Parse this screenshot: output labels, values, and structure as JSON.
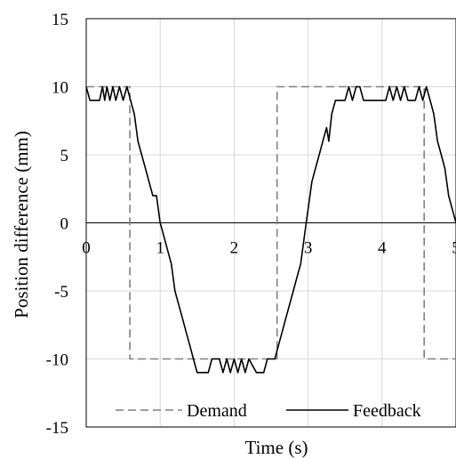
{
  "chart_data": {
    "type": "line",
    "title": "",
    "xlabel": "Time (s)",
    "ylabel": "Position difference (mm)",
    "xlim": [
      0,
      5
    ],
    "ylim": [
      -15,
      15
    ],
    "x_ticks": [
      "0",
      "1",
      "2",
      "3",
      "4",
      "5"
    ],
    "y_ticks": [
      "15",
      "10",
      "5",
      "0",
      "-5",
      "-10",
      "-15"
    ],
    "x_tick_values": [
      0,
      1,
      2,
      3,
      4,
      5
    ],
    "y_tick_values": [
      15,
      10,
      5,
      0,
      -5,
      -10,
      -15
    ],
    "grid": true,
    "legend_position": "bottom",
    "series": [
      {
        "name": "Demand",
        "style": "dashed",
        "color": "#808080",
        "points": [
          [
            0,
            10
          ],
          [
            0.59,
            10
          ],
          [
            0.59,
            -10
          ],
          [
            2.58,
            -10
          ],
          [
            2.58,
            10
          ],
          [
            4.57,
            10
          ],
          [
            4.57,
            -10
          ],
          [
            5,
            -10
          ]
        ]
      },
      {
        "name": "Feedback",
        "style": "solid",
        "color": "#000000",
        "points": [
          [
            0,
            10
          ],
          [
            0.05,
            9
          ],
          [
            0.18,
            9
          ],
          [
            0.22,
            10
          ],
          [
            0.25,
            9
          ],
          [
            0.28,
            10
          ],
          [
            0.32,
            9
          ],
          [
            0.36,
            10
          ],
          [
            0.4,
            9
          ],
          [
            0.45,
            10
          ],
          [
            0.5,
            9
          ],
          [
            0.55,
            10
          ],
          [
            0.6,
            9
          ],
          [
            0.65,
            8
          ],
          [
            0.7,
            6
          ],
          [
            0.75,
            5
          ],
          [
            0.8,
            4
          ],
          [
            0.85,
            3
          ],
          [
            0.9,
            2
          ],
          [
            0.95,
            2
          ],
          [
            1.0,
            0
          ],
          [
            1.05,
            -1
          ],
          [
            1.1,
            -2
          ],
          [
            1.15,
            -3
          ],
          [
            1.2,
            -5
          ],
          [
            1.25,
            -6
          ],
          [
            1.3,
            -7
          ],
          [
            1.35,
            -8
          ],
          [
            1.4,
            -9
          ],
          [
            1.45,
            -10
          ],
          [
            1.5,
            -11
          ],
          [
            1.6,
            -11
          ],
          [
            1.65,
            -11
          ],
          [
            1.7,
            -10
          ],
          [
            1.8,
            -10
          ],
          [
            1.85,
            -11
          ],
          [
            1.9,
            -10
          ],
          [
            1.95,
            -11
          ],
          [
            2.0,
            -10
          ],
          [
            2.05,
            -11
          ],
          [
            2.1,
            -10
          ],
          [
            2.15,
            -11
          ],
          [
            2.2,
            -10
          ],
          [
            2.3,
            -11
          ],
          [
            2.4,
            -11
          ],
          [
            2.45,
            -10
          ],
          [
            2.55,
            -10
          ],
          [
            2.6,
            -9
          ],
          [
            2.65,
            -8
          ],
          [
            2.7,
            -7
          ],
          [
            2.75,
            -6
          ],
          [
            2.8,
            -5
          ],
          [
            2.85,
            -4
          ],
          [
            2.9,
            -3
          ],
          [
            2.95,
            -1
          ],
          [
            3.0,
            1
          ],
          [
            3.05,
            3
          ],
          [
            3.1,
            4
          ],
          [
            3.15,
            5
          ],
          [
            3.2,
            6
          ],
          [
            3.25,
            7
          ],
          [
            3.28,
            6
          ],
          [
            3.32,
            8
          ],
          [
            3.37,
            9
          ],
          [
            3.45,
            9
          ],
          [
            3.5,
            9
          ],
          [
            3.55,
            10
          ],
          [
            3.6,
            9
          ],
          [
            3.65,
            10
          ],
          [
            3.7,
            10
          ],
          [
            3.75,
            9
          ],
          [
            3.8,
            9
          ],
          [
            3.85,
            9
          ],
          [
            3.95,
            9
          ],
          [
            4.05,
            9
          ],
          [
            4.1,
            10
          ],
          [
            4.15,
            9
          ],
          [
            4.2,
            10
          ],
          [
            4.25,
            9
          ],
          [
            4.3,
            10
          ],
          [
            4.35,
            9
          ],
          [
            4.45,
            9
          ],
          [
            4.5,
            10
          ],
          [
            4.55,
            9
          ],
          [
            4.6,
            10
          ],
          [
            4.65,
            9
          ],
          [
            4.7,
            8
          ],
          [
            4.75,
            6
          ],
          [
            4.8,
            5
          ],
          [
            4.85,
            4
          ],
          [
            4.9,
            2
          ],
          [
            4.95,
            1
          ],
          [
            5.0,
            0
          ]
        ]
      }
    ]
  }
}
